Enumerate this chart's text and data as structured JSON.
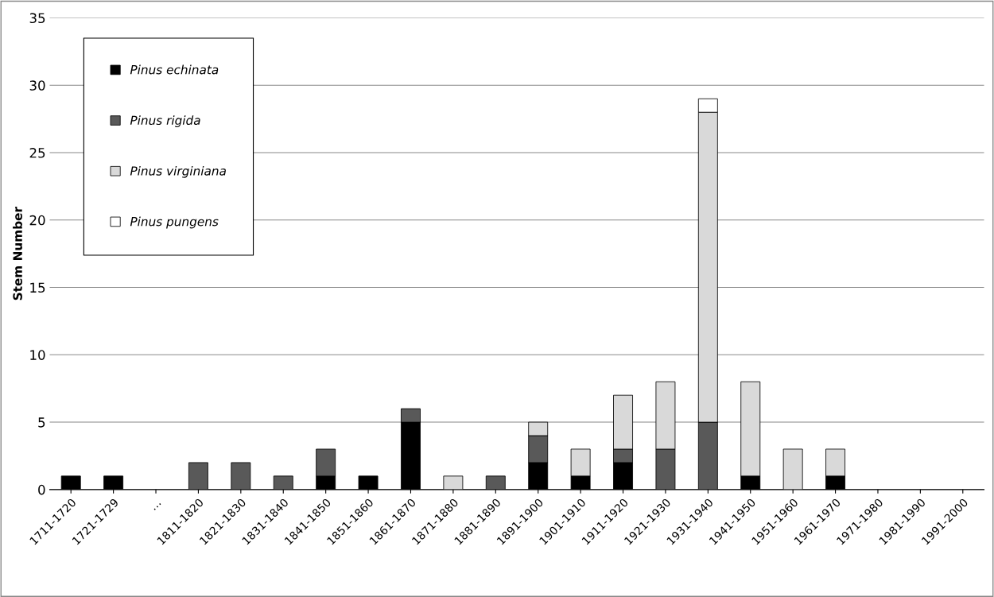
{
  "chart_data": {
    "type": "bar",
    "stacked": true,
    "ylabel": "Stem Number",
    "categories": [
      "1711-1720",
      "1721-1729",
      "…",
      "1811-1820",
      "1821-1830",
      "1831-1840",
      "1841-1850",
      "1851-1860",
      "1861-1870",
      "1871-1880",
      "1881-1890",
      "1891-1900",
      "1901-1910",
      "1911-1920",
      "1921-1930",
      "1931-1940",
      "1941-1950",
      "1951-1960",
      "1961-1970",
      "1971-1980",
      "1981-1990",
      "1991-2000"
    ],
    "series": [
      {
        "name": "Pinus echinata",
        "color": "#000000",
        "values": [
          1,
          1,
          null,
          null,
          null,
          null,
          1,
          1,
          5,
          null,
          null,
          2,
          1,
          2,
          null,
          null,
          1,
          null,
          1,
          null,
          null,
          null
        ]
      },
      {
        "name": "Pinus rigida",
        "color": "#595959",
        "values": [
          null,
          null,
          null,
          2,
          2,
          1,
          2,
          null,
          1,
          null,
          1,
          2,
          null,
          1,
          3,
          5,
          null,
          null,
          null,
          null,
          null,
          null
        ]
      },
      {
        "name": "Pinus virginiana",
        "color": "#d9d9d9",
        "values": [
          null,
          null,
          null,
          null,
          null,
          null,
          null,
          null,
          null,
          1,
          null,
          1,
          2,
          4,
          5,
          23,
          7,
          3,
          2,
          null,
          null,
          null
        ]
      },
      {
        "name": "Pinus pungens",
        "color": "#ffffff",
        "values": [
          null,
          null,
          null,
          null,
          null,
          null,
          null,
          null,
          null,
          null,
          null,
          null,
          null,
          null,
          null,
          1,
          null,
          null,
          null,
          null,
          null,
          null
        ]
      }
    ],
    "ylim": [
      0,
      35
    ],
    "yticks": [
      0,
      5,
      10,
      15,
      20,
      25,
      30,
      35
    ],
    "grid": "y",
    "legend": "top left"
  }
}
